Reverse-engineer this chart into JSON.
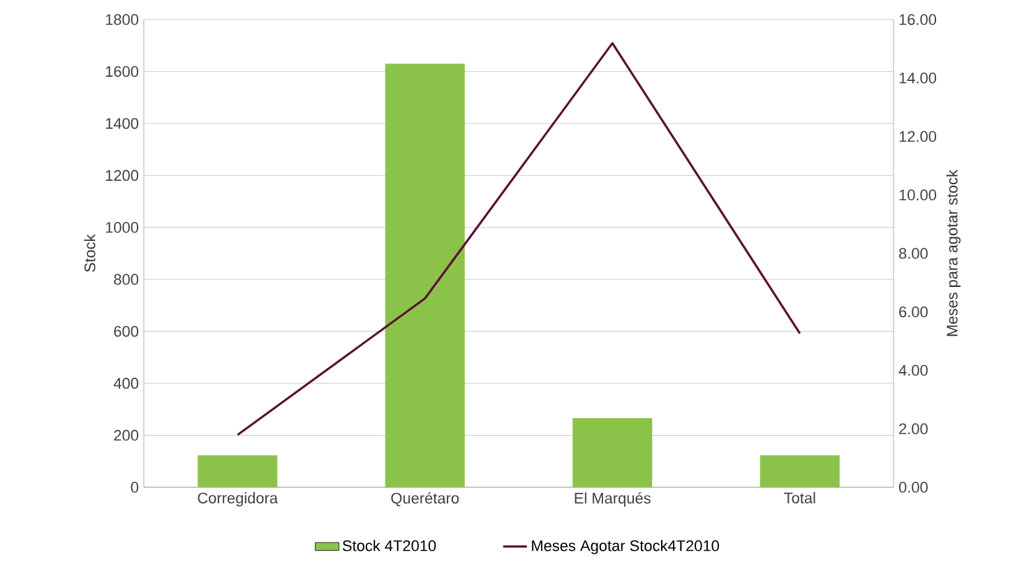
{
  "chart_data": {
    "type": "bar",
    "categories": [
      "Corregidora",
      "Querétaro",
      "El Marqués",
      "Total"
    ],
    "series": [
      {
        "name": "Stock  4T2010",
        "color": "#8bc34a",
        "values": [
          123,
          1630,
          266,
          123
        ]
      },
      {
        "name": "Meses Agotar Stock4T2010",
        "type": "line",
        "axis": "y2",
        "color": "#5c1033",
        "values": [
          1.79,
          6.46,
          15.19,
          5.26
        ]
      }
    ],
    "ylabel": "Stock",
    "y2label": "Meses para agotar stock",
    "ylim": [
      0,
      1800
    ],
    "yticks": [
      0,
      200,
      400,
      600,
      800,
      1000,
      1200,
      1400,
      1600,
      1800
    ],
    "y2lim": [
      0,
      16
    ],
    "y2ticks": [
      {
        "value": 0,
        "label": "0.00"
      },
      {
        "value": 2,
        "label": "2.00"
      },
      {
        "value": 4,
        "label": "4.00"
      },
      {
        "value": 6,
        "label": "6.00"
      },
      {
        "value": 8,
        "label": "8.00"
      },
      {
        "value": 10,
        "label": "10.00"
      },
      {
        "value": 12,
        "label": "12.00"
      },
      {
        "value": 14,
        "label": "14.00"
      },
      {
        "value": 16,
        "label": "16.00"
      }
    ],
    "grid": "y",
    "legend": "bottom",
    "marker": "none"
  }
}
